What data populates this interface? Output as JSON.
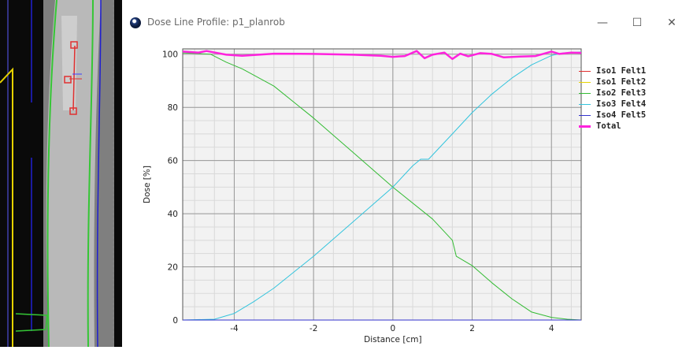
{
  "window": {
    "title": "Dose Line Profile: p1_planrob"
  },
  "controls": {
    "minimize": "—",
    "maximize": "☐",
    "close": "✕"
  },
  "icons": {
    "app": "dose-profile-app-icon",
    "minimize": "minimize-icon",
    "maximize": "maximize-icon",
    "close": "close-icon"
  },
  "colors": {
    "background": "#ffffff",
    "plot_bg": "#f2f2f2",
    "grid_major": "#999999",
    "grid_minor": "#d9d9d9"
  },
  "chart_data": {
    "type": "line",
    "title": "",
    "xlabel": "Distance [cm]",
    "ylabel": "Dose [%]",
    "xlim": [
      -5.3,
      4.75
    ],
    "ylim": [
      0,
      102
    ],
    "xticks": [
      -4,
      -2,
      0,
      2,
      4
    ],
    "yticks": [
      0,
      20,
      40,
      60,
      80,
      100
    ],
    "grid": true,
    "legend_position": "right",
    "series": [
      {
        "name": "Iso1 Felt1",
        "color": "#e03030",
        "width": 1,
        "x": [
          -5.3,
          4.75
        ],
        "y": [
          0,
          0
        ]
      },
      {
        "name": "Iso1 Felt2",
        "color": "#e6d200",
        "width": 1,
        "x": [
          -5.3,
          4.75
        ],
        "y": [
          0,
          0
        ]
      },
      {
        "name": "Iso2 Felt3",
        "color": "#33bb33",
        "width": 1,
        "x": [
          -5.3,
          -4.6,
          -4.2,
          -3.8,
          -3.0,
          -2.0,
          -1.0,
          0.0,
          1.0,
          1.5,
          1.6,
          2.0,
          2.5,
          3.0,
          3.5,
          4.0,
          4.4,
          4.75
        ],
        "y": [
          100.5,
          100,
          97,
          94.5,
          88,
          76,
          63,
          50,
          38,
          30,
          24,
          20.5,
          14,
          8,
          3,
          1,
          0.3,
          0
        ]
      },
      {
        "name": "Iso3 Felt4",
        "color": "#33c4dd",
        "width": 1,
        "x": [
          -5.3,
          -4.5,
          -4.0,
          -3.5,
          -3.0,
          -2.0,
          -1.0,
          0.0,
          0.5,
          0.7,
          0.9,
          1.5,
          2.0,
          2.5,
          3.0,
          3.5,
          4.0,
          4.3,
          4.75
        ],
        "y": [
          0,
          0.3,
          2.5,
          7,
          12,
          24,
          37,
          50,
          58,
          60.5,
          60.5,
          70,
          78,
          85,
          91,
          96,
          99.5,
          100.5,
          100.8
        ]
      },
      {
        "name": "Iso4 Felt5",
        "color": "#3333cc",
        "width": 1,
        "x": [
          -5.3,
          4.75
        ],
        "y": [
          0,
          0
        ]
      },
      {
        "name": "Total",
        "color": "#ff22dd",
        "width": 2.5,
        "x": [
          -5.3,
          -4.9,
          -4.7,
          -4.2,
          -3.8,
          -3.0,
          -2.0,
          -1.0,
          -0.3,
          0.0,
          0.3,
          0.6,
          0.8,
          1.0,
          1.3,
          1.5,
          1.7,
          1.9,
          2.2,
          2.5,
          2.8,
          3.2,
          3.6,
          4.0,
          4.2,
          4.5,
          4.75
        ],
        "y": [
          101,
          100.6,
          101.2,
          99.8,
          99.4,
          100.2,
          100.1,
          99.8,
          99.4,
          99.0,
          99.3,
          101.2,
          98.5,
          99.8,
          100.6,
          98.2,
          100.2,
          99.2,
          100.4,
          100.1,
          98.8,
          99.1,
          99.3,
          101.0,
          100.1,
          100.6,
          100.5
        ]
      }
    ]
  }
}
